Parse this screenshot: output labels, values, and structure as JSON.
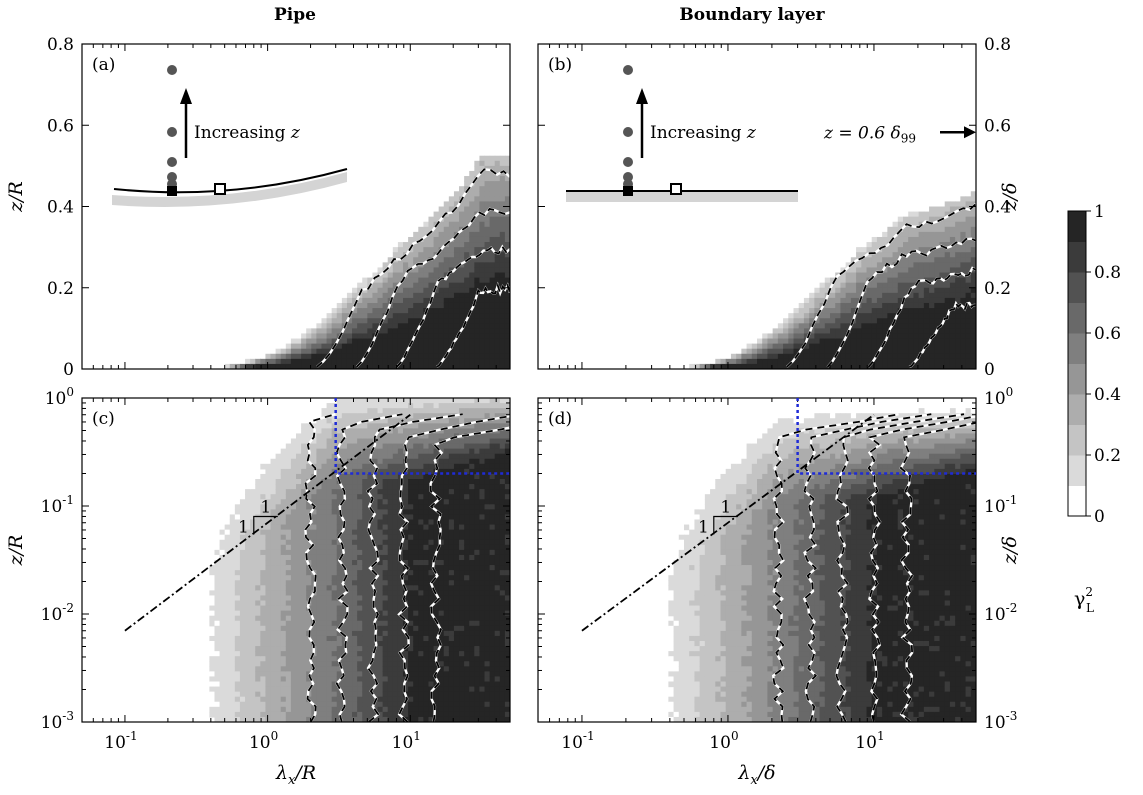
{
  "column_titles": [
    "Pipe",
    "Boundary layer"
  ],
  "colorbar": {
    "label_main": "γ",
    "label_sup": "2",
    "label_sub": "L",
    "ticks": [
      "0",
      "0.2",
      "0.4",
      "0.6",
      "0.8",
      "1"
    ],
    "levels": [
      0.1,
      0.2,
      0.3,
      0.4,
      0.5,
      0.6,
      0.7,
      0.8,
      0.9
    ],
    "colors": [
      "#ffffff",
      "#dadada",
      "#c4c4c4",
      "#adadad",
      "#969696",
      "#7f7f7f",
      "#696969",
      "#525252",
      "#3b3b3b",
      "#252525",
      "#0e0e0e"
    ]
  },
  "chart_data": [
    {
      "panel": "(a)",
      "type": "heatmap",
      "xscale": "log",
      "xlim": [
        0.05,
        50
      ],
      "ylim": [
        0,
        0.8
      ],
      "ylabel": "z/R",
      "yticks": [
        "0",
        "0.2",
        "0.4",
        "0.6",
        "0.8"
      ],
      "dashed_contour_levels": [
        0.1,
        0.3,
        0.5,
        0.7
      ],
      "inset": {
        "text_prefix": "Increasing ",
        "text_var": "z",
        "wall": "curved"
      },
      "onset_x": [
        0.35,
        0.9,
        2,
        4,
        8,
        16,
        32
      ],
      "onset_z": [
        0,
        0.03,
        0.1,
        0.2,
        0.3,
        0.4,
        0.53
      ]
    },
    {
      "panel": "(b)",
      "type": "heatmap",
      "xscale": "log",
      "xlim": [
        0.05,
        50
      ],
      "ylim": [
        0,
        0.8
      ],
      "ylabel": "z/δ",
      "yticks": [
        "0",
        "0.2",
        "0.4",
        "0.6",
        "0.8"
      ],
      "dashed_contour_levels": [
        0.1,
        0.3,
        0.5,
        0.7
      ],
      "inset": {
        "text_prefix": "Increasing ",
        "text_var": "z",
        "wall": "flat"
      },
      "marker_text": "z = 0.6 δ",
      "marker_sub": "99",
      "marker_z": 0.6,
      "onset_x": [
        0.4,
        1,
        2,
        4,
        8,
        16,
        50
      ],
      "onset_z": [
        0,
        0.03,
        0.1,
        0.2,
        0.3,
        0.38,
        0.44
      ]
    },
    {
      "panel": "(c)",
      "type": "heatmap",
      "xscale": "log",
      "yscale": "log",
      "xlim": [
        0.05,
        50
      ],
      "ylim": [
        0.001,
        1
      ],
      "ylabel": "z/R",
      "xlabel_main": "λ",
      "xlabel_sub": "x",
      "xlabel_tail": "/R",
      "xtick_exps": [
        -1,
        0,
        1
      ],
      "ytick_exps": [
        -3,
        -2,
        -1,
        0
      ],
      "slope_line": {
        "x": [
          0.1,
          10
        ],
        "z": [
          0.007,
          0.7
        ]
      },
      "slope_label_rise": "1",
      "slope_label_run": "1",
      "blue_box": {
        "x": 3,
        "z": 0.2
      },
      "dashed_contour_levels": [
        0.1,
        0.3,
        0.5,
        0.7,
        0.8
      ]
    },
    {
      "panel": "(d)",
      "type": "heatmap",
      "xscale": "log",
      "yscale": "log",
      "xlim": [
        0.05,
        50
      ],
      "ylim": [
        0.001,
        1
      ],
      "ylabel": "z/δ",
      "xlabel_main": "λ",
      "xlabel_sub": "x",
      "xlabel_tail": "/δ",
      "xtick_exps": [
        -1,
        0,
        1
      ],
      "ytick_exps": [
        -3,
        -2,
        -1,
        0
      ],
      "slope_line": {
        "x": [
          0.1,
          10
        ],
        "z": [
          0.007,
          0.7
        ]
      },
      "slope_label_rise": "1",
      "slope_label_run": "1",
      "blue_box": {
        "x": 3,
        "z": 0.2
      },
      "dashed_contour_levels": [
        0.1,
        0.3,
        0.5,
        0.7,
        0.8
      ]
    }
  ]
}
